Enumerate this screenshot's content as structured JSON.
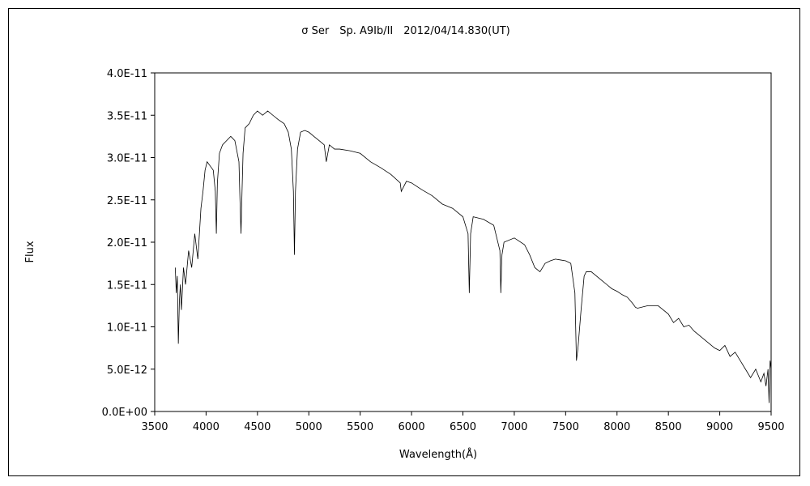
{
  "chart_data": {
    "type": "line",
    "title": "σ Ser　Sp. A9Ib/II　2012/04/14.830(UT)",
    "xlabel": "Wavelength(Å)",
    "ylabel": "Flux",
    "xlim": [
      3500,
      9500
    ],
    "ylim": [
      0,
      4e-11
    ],
    "x_ticks": [
      3500,
      4000,
      4500,
      5000,
      5500,
      6000,
      6500,
      7000,
      7500,
      8000,
      8500,
      9000,
      9500
    ],
    "x_tick_labels": [
      "3500",
      "4000",
      "4500",
      "5000",
      "5500",
      "6000",
      "6500",
      "7000",
      "7500",
      "8000",
      "8500",
      "9000",
      "9500"
    ],
    "y_ticks": [
      0,
      5e-12,
      1e-11,
      1.5e-11,
      2e-11,
      2.5e-11,
      3e-11,
      3.5e-11,
      4e-11
    ],
    "y_tick_labels": [
      "0.0E+00",
      "5.0E-12",
      "1.0E-11",
      "1.5E-11",
      "2.0E-11",
      "2.5E-11",
      "3.0E-11",
      "3.5E-11",
      "4.0E-11"
    ],
    "grid": false,
    "legend": "none",
    "line_color": "#000000",
    "series": [
      {
        "x": [
          3700,
          3710,
          3720,
          3730,
          3740,
          3750,
          3760,
          3780,
          3800,
          3830,
          3860,
          3890,
          3920,
          3950,
          3970,
          3990,
          4010,
          4040,
          4070,
          4090,
          4100,
          4110,
          4130,
          4160,
          4200,
          4240,
          4280,
          4320,
          4330,
          4340,
          4350,
          4360,
          4380,
          4420,
          4460,
          4500,
          4550,
          4600,
          4650,
          4700,
          4760,
          4800,
          4830,
          4850,
          4860,
          4870,
          4890,
          4920,
          4960,
          5000,
          5050,
          5100,
          5150,
          5170,
          5200,
          5250,
          5300,
          5400,
          5500,
          5600,
          5700,
          5800,
          5890,
          5900,
          5950,
          6000,
          6100,
          6200,
          6300,
          6400,
          6500,
          6550,
          6562,
          6575,
          6600,
          6700,
          6800,
          6860,
          6869,
          6880,
          6900,
          7000,
          7100,
          7150,
          7200,
          7250,
          7300,
          7350,
          7400,
          7450,
          7500,
          7550,
          7590,
          7605,
          7620,
          7650,
          7680,
          7700,
          7750,
          7800,
          7850,
          7900,
          7950,
          8000,
          8050,
          8100,
          8150,
          8180,
          8200,
          8300,
          8400,
          8500,
          8550,
          8600,
          8650,
          8700,
          8750,
          8800,
          8850,
          8900,
          8950,
          9000,
          9050,
          9100,
          9150,
          9200,
          9250,
          9300,
          9350,
          9400,
          9430,
          9450,
          9470,
          9480,
          9490,
          9500
        ],
        "y": [
          1.7e-11,
          1.4e-11,
          1.6e-11,
          8e-12,
          1.3e-11,
          1.5e-11,
          1.2e-11,
          1.7e-11,
          1.5e-11,
          1.9e-11,
          1.7e-11,
          2.1e-11,
          1.8e-11,
          2.4e-11,
          2.6e-11,
          2.85e-11,
          2.95e-11,
          2.9e-11,
          2.85e-11,
          2.6e-11,
          2.1e-11,
          2.7e-11,
          3.05e-11,
          3.15e-11,
          3.2e-11,
          3.25e-11,
          3.2e-11,
          2.95e-11,
          2.5e-11,
          2.1e-11,
          2.6e-11,
          3.05e-11,
          3.35e-11,
          3.4e-11,
          3.5e-11,
          3.55e-11,
          3.5e-11,
          3.55e-11,
          3.5e-11,
          3.45e-11,
          3.4e-11,
          3.3e-11,
          3.1e-11,
          2.6e-11,
          1.85e-11,
          2.6e-11,
          3.1e-11,
          3.3e-11,
          3.32e-11,
          3.3e-11,
          3.25e-11,
          3.2e-11,
          3.15e-11,
          2.95e-11,
          3.15e-11,
          3.1e-11,
          3.1e-11,
          3.08e-11,
          3.05e-11,
          2.95e-11,
          2.88e-11,
          2.8e-11,
          2.7e-11,
          2.6e-11,
          2.72e-11,
          2.7e-11,
          2.62e-11,
          2.55e-11,
          2.45e-11,
          2.4e-11,
          2.3e-11,
          2.1e-11,
          1.4e-11,
          2.1e-11,
          2.3e-11,
          2.27e-11,
          2.2e-11,
          1.9e-11,
          1.4e-11,
          1.85e-11,
          2e-11,
          2.05e-11,
          1.97e-11,
          1.85e-11,
          1.7e-11,
          1.65e-11,
          1.75e-11,
          1.78e-11,
          1.8e-11,
          1.79e-11,
          1.78e-11,
          1.75e-11,
          1.4e-11,
          6e-12,
          7.5e-12,
          1.2e-11,
          1.6e-11,
          1.65e-11,
          1.65e-11,
          1.6e-11,
          1.55e-11,
          1.5e-11,
          1.45e-11,
          1.42e-11,
          1.38e-11,
          1.35e-11,
          1.28e-11,
          1.23e-11,
          1.22e-11,
          1.25e-11,
          1.25e-11,
          1.15e-11,
          1.05e-11,
          1.1e-11,
          1e-11,
          1.02e-11,
          9.5e-12,
          9e-12,
          8.5e-12,
          8e-12,
          7.5e-12,
          7.2e-12,
          7.8e-12,
          6.5e-12,
          7e-12,
          6e-12,
          5e-12,
          4e-12,
          5e-12,
          3.5e-12,
          4.5e-12,
          3e-12,
          5e-12,
          1e-12,
          6e-12,
          5e-12
        ]
      }
    ]
  }
}
